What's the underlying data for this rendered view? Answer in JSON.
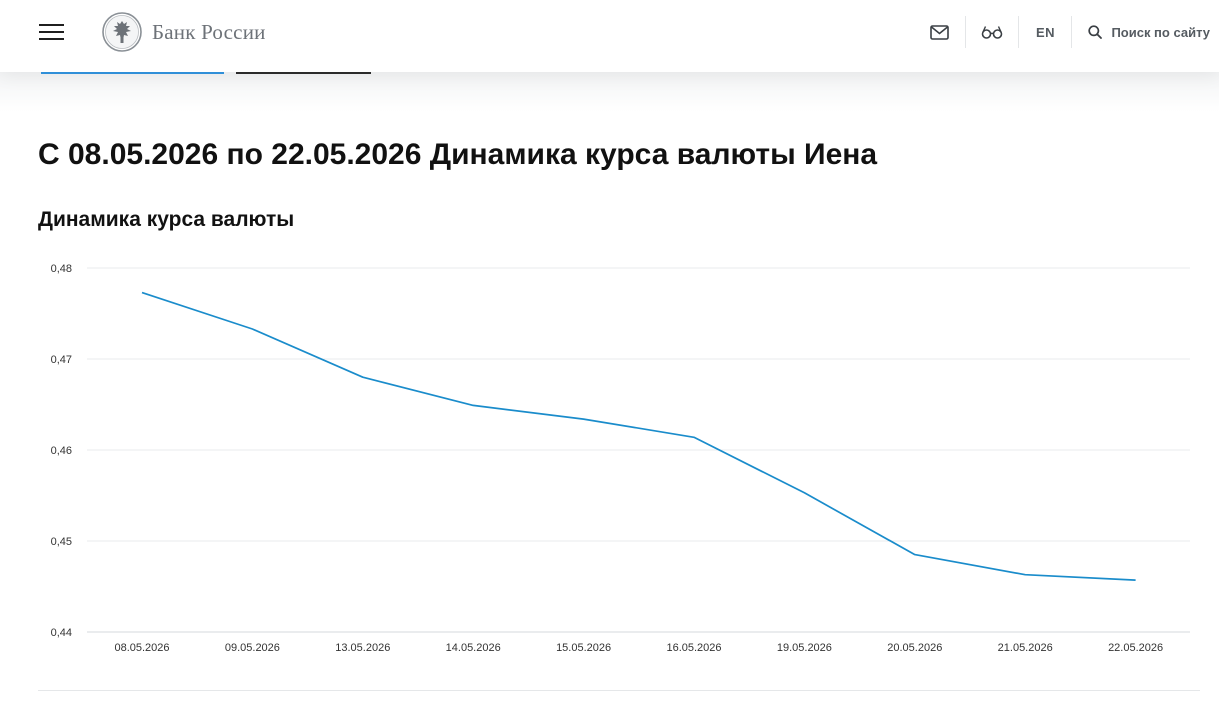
{
  "header": {
    "logo_text": "Банк России",
    "logo_icon": "double-headed-eagle-emblem",
    "lang_label": "EN",
    "search_label": "Поиск по сайту",
    "icons": [
      "menu-icon",
      "mail-icon",
      "glasses-icon",
      "search-icon"
    ]
  },
  "page": {
    "title": "С 08.05.2026 по 22.05.2026 Динамика курса валюты Иена"
  },
  "chart_data": {
    "type": "line",
    "title": "Динамика курса валюты",
    "xlabel": "",
    "ylabel": "",
    "categories": [
      "08.05.2026",
      "09.05.2026",
      "13.05.2026",
      "14.05.2026",
      "15.05.2026",
      "16.05.2026",
      "19.05.2026",
      "20.05.2026",
      "21.05.2026",
      "22.05.2026"
    ],
    "series": [
      {
        "values": [
          0.4773,
          0.4733,
          0.468,
          0.4649,
          0.4634,
          0.4614,
          0.4553,
          0.4485,
          0.4463,
          0.4457
        ],
        "color": "#1a8ccb"
      }
    ],
    "ylim": [
      0.44,
      0.48
    ],
    "yticks": [
      0.44,
      0.45,
      0.46,
      0.47,
      0.48
    ],
    "ytick_labels": [
      "0,44",
      "0,45",
      "0,46",
      "0,47",
      "0,48"
    ],
    "grid": true,
    "legend": "none"
  }
}
